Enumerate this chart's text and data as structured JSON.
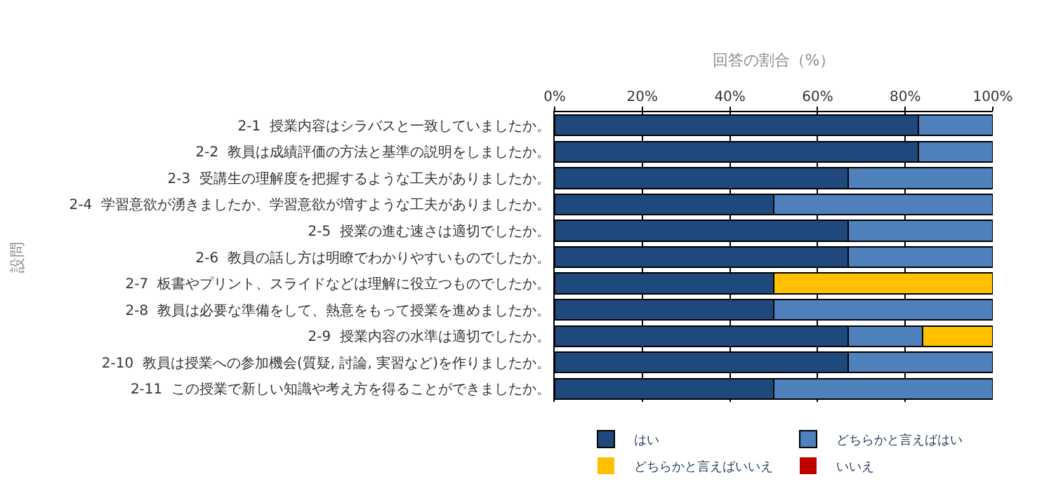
{
  "chart_data": {
    "type": "bar",
    "orientation": "horizontal",
    "stacked": true,
    "xlabel": "回答の割合（%）",
    "ylabel": "設問",
    "categories": [
      "2-1  授業内容はシラバスと一致していましたか。",
      "2-2  教員は成績評価の方法と基準の説明をしましたか。",
      "2-3  受講生の理解度を把握するような工夫がありましたか。",
      "2-4  学習意欲が湧きましたか、学習意欲が増すような工夫がありましたか。",
      "2-5  授業の進む速さは適切でしたか。",
      "2-6  教員の話し方は明瞭でわかりやすいものでしたか。",
      "2-7  板書やプリント、スライドなどは理解に役立つものでしたか。",
      "2-8  教員は必要な準備をして、熱意をもって授業を進めましたか。",
      "2-9  授業内容の水準は適切でしたか。",
      "2-10  教員は授業への参加機会(質疑, 討論, 実習など)を作りましたか。",
      "2-11  この授業で新しい知識や考え方を得ることができましたか。"
    ],
    "series": [
      {
        "name": "はい",
        "color": "#1f497d",
        "values": [
          83,
          83,
          67,
          50,
          67,
          67,
          50,
          50,
          67,
          67,
          50
        ]
      },
      {
        "name": "どちらかと言えばはい",
        "color": "#4f81bd",
        "values": [
          17,
          17,
          33,
          50,
          33,
          33,
          0,
          50,
          17,
          33,
          50
        ]
      },
      {
        "name": "どちらかと言えばいいえ",
        "color": "#ffc000",
        "values": [
          0,
          0,
          0,
          0,
          0,
          0,
          50,
          0,
          16,
          0,
          0
        ]
      },
      {
        "name": "いいえ",
        "color": "#c00000",
        "values": [
          0,
          0,
          0,
          0,
          0,
          0,
          0,
          0,
          0,
          0,
          0
        ]
      }
    ],
    "xlim": [
      0,
      100
    ],
    "xticks": [
      {
        "value": 0,
        "label": "0%"
      },
      {
        "value": 20,
        "label": "20%"
      },
      {
        "value": 40,
        "label": "40%"
      },
      {
        "value": 60,
        "label": "60%"
      },
      {
        "value": 80,
        "label": "80%"
      },
      {
        "value": 100,
        "label": "100%"
      }
    ],
    "grid": "x",
    "legend": "bottom"
  }
}
